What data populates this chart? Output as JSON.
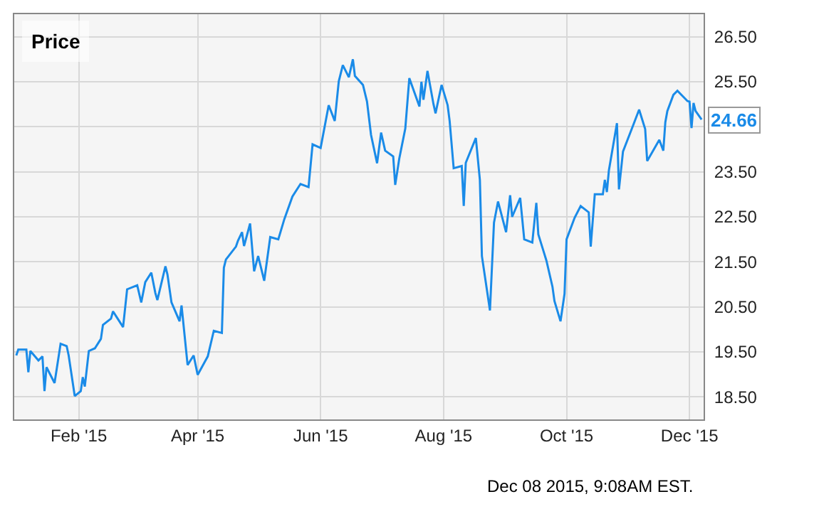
{
  "chart_data": {
    "type": "line",
    "title": "Price",
    "x": [
      "2015-01-01",
      "2015-01-02",
      "2015-01-06",
      "2015-01-07",
      "2015-01-08",
      "2015-01-12",
      "2015-01-14",
      "2015-01-15",
      "2015-01-16",
      "2015-01-20",
      "2015-01-23",
      "2015-01-26",
      "2015-01-27",
      "2015-01-30",
      "2015-02-02",
      "2015-02-03",
      "2015-02-04",
      "2015-02-06",
      "2015-02-09",
      "2015-02-12",
      "2015-02-13",
      "2015-02-17",
      "2015-02-18",
      "2015-02-20",
      "2015-02-23",
      "2015-02-25",
      "2015-03-02",
      "2015-03-04",
      "2015-03-06",
      "2015-03-09",
      "2015-03-11",
      "2015-03-12",
      "2015-03-16",
      "2015-03-17",
      "2015-03-19",
      "2015-03-23",
      "2015-03-24",
      "2015-03-27",
      "2015-03-30",
      "2015-04-01",
      "2015-04-06",
      "2015-04-09",
      "2015-04-13",
      "2015-04-14",
      "2015-04-15",
      "2015-04-20",
      "2015-04-21",
      "2015-04-23",
      "2015-04-24",
      "2015-04-27",
      "2015-04-29",
      "2015-05-01",
      "2015-05-04",
      "2015-05-07",
      "2015-05-11",
      "2015-05-14",
      "2015-05-18",
      "2015-05-22",
      "2015-05-26",
      "2015-05-28",
      "2015-06-01",
      "2015-06-05",
      "2015-06-08",
      "2015-06-10",
      "2015-06-12",
      "2015-06-15",
      "2015-06-17",
      "2015-06-18",
      "2015-06-22",
      "2015-06-24",
      "2015-06-26",
      "2015-06-29",
      "2015-07-01",
      "2015-07-03",
      "2015-07-07",
      "2015-07-08",
      "2015-07-10",
      "2015-07-13",
      "2015-07-15",
      "2015-07-20",
      "2015-07-21",
      "2015-07-22",
      "2015-07-24",
      "2015-07-27",
      "2015-07-28",
      "2015-07-31",
      "2015-08-03",
      "2015-08-04",
      "2015-08-06",
      "2015-08-10",
      "2015-08-11",
      "2015-08-12",
      "2015-08-17",
      "2015-08-19",
      "2015-08-20",
      "2015-08-24",
      "2015-08-26",
      "2015-08-28",
      "2015-09-01",
      "2015-09-03",
      "2015-09-04",
      "2015-09-08",
      "2015-09-10",
      "2015-09-14",
      "2015-09-16",
      "2015-09-17",
      "2015-09-21",
      "2015-09-24",
      "2015-09-25",
      "2015-09-28",
      "2015-09-30",
      "2015-10-01",
      "2015-10-05",
      "2015-10-08",
      "2015-10-12",
      "2015-10-13",
      "2015-10-15",
      "2015-10-19",
      "2015-10-20",
      "2015-10-21",
      "2015-10-22",
      "2015-10-26",
      "2015-10-27",
      "2015-10-29",
      "2015-11-03",
      "2015-11-06",
      "2015-11-09",
      "2015-11-10",
      "2015-11-16",
      "2015-11-18",
      "2015-11-19",
      "2015-11-20",
      "2015-11-23",
      "2015-11-25",
      "2015-11-30",
      "2015-12-01",
      "2015-12-02",
      "2015-12-03",
      "2015-12-04",
      "2015-12-07"
    ],
    "series": [
      {
        "color": "#1a8be8",
        "values": [
          19.42,
          19.55,
          19.55,
          19.05,
          19.52,
          19.31,
          19.4,
          18.63,
          19.16,
          18.81,
          19.68,
          19.63,
          19.42,
          18.52,
          18.63,
          18.94,
          18.73,
          19.52,
          19.58,
          19.79,
          20.1,
          20.24,
          20.4,
          20.26,
          20.05,
          20.89,
          20.98,
          20.6,
          21.05,
          21.26,
          20.81,
          20.65,
          21.4,
          21.22,
          20.6,
          20.18,
          20.53,
          19.21,
          19.42,
          18.99,
          19.4,
          19.97,
          19.92,
          21.37,
          21.55,
          21.84,
          21.97,
          22.16,
          21.85,
          22.35,
          21.29,
          21.63,
          21.08,
          22.05,
          22.0,
          22.45,
          22.95,
          23.23,
          23.16,
          24.11,
          24.03,
          24.98,
          24.63,
          25.51,
          25.87,
          25.6,
          26.0,
          25.63,
          25.43,
          25.06,
          24.32,
          23.69,
          24.37,
          23.97,
          23.84,
          23.21,
          23.79,
          24.46,
          25.58,
          24.95,
          25.5,
          25.1,
          25.74,
          25.0,
          24.8,
          25.43,
          24.98,
          24.63,
          23.58,
          23.63,
          22.74,
          23.7,
          24.25,
          23.32,
          21.63,
          20.42,
          22.37,
          22.84,
          22.16,
          22.98,
          22.5,
          22.92,
          22.0,
          21.93,
          22.81,
          22.11,
          21.53,
          20.95,
          20.63,
          20.18,
          20.79,
          22.0,
          22.48,
          22.74,
          22.6,
          21.84,
          23.0,
          23.0,
          23.32,
          23.05,
          23.53,
          24.58,
          23.11,
          23.95,
          24.53,
          24.88,
          24.45,
          23.74,
          24.21,
          23.97,
          24.6,
          24.85,
          25.21,
          25.3,
          25.07,
          25.06,
          24.47,
          25.03,
          24.85,
          24.66
        ]
      }
    ],
    "xlim": [
      "2014-12-31",
      "2015-12-08"
    ],
    "xticks": [
      {
        "value": "2015-02-01",
        "label": "Feb '15"
      },
      {
        "value": "2015-04-01",
        "label": "Apr '15"
      },
      {
        "value": "2015-06-01",
        "label": "Jun '15"
      },
      {
        "value": "2015-08-01",
        "label": "Aug '15"
      },
      {
        "value": "2015-10-01",
        "label": "Oct '15"
      },
      {
        "value": "2015-12-01",
        "label": "Dec '15"
      }
    ],
    "ylim": [
      18,
      27
    ],
    "yticks": [
      {
        "value": 18.5,
        "label": "18.50"
      },
      {
        "value": 19.5,
        "label": "19.50"
      },
      {
        "value": 20.5,
        "label": "20.50"
      },
      {
        "value": 21.5,
        "label": "21.50"
      },
      {
        "value": 22.5,
        "label": "22.50"
      },
      {
        "value": 23.5,
        "label": "23.50"
      },
      {
        "value": 24.5,
        "label": null
      },
      {
        "value": 25.5,
        "label": "25.50"
      },
      {
        "value": 26.5,
        "label": "26.50"
      }
    ],
    "grid": true,
    "marker": "none",
    "line_style": "solid",
    "annotations": [
      {
        "text": "24.66",
        "x": "2015-12-07",
        "y": 24.66
      },
      "Dec 08 2015, 9:08AM EST."
    ]
  }
}
